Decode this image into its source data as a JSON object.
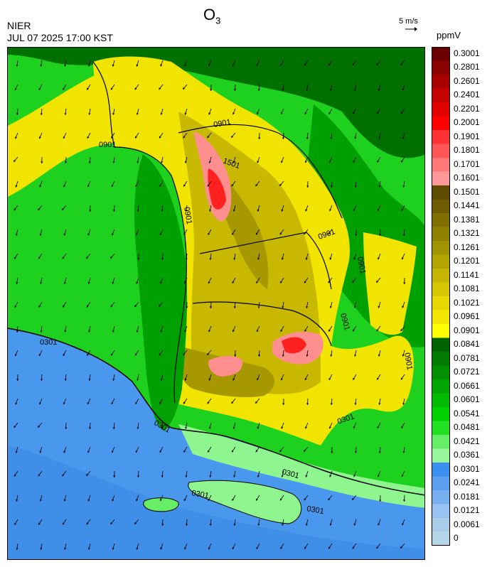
{
  "header": {
    "title_main": "O",
    "title_sub": "3",
    "agency": "NIER",
    "datetime": "JUL 07 2025 17:00 KST",
    "wind_ref_label": "5 m/s",
    "units": "ppmV"
  },
  "contour_labels": [
    "0901",
    "0901",
    "1501",
    "0901",
    "0901",
    "0901",
    "0901",
    "0901",
    "0301",
    "0301",
    "0301",
    "0301",
    "0301",
    "0301"
  ],
  "legend": {
    "levels": [
      {
        "label": "0.3001",
        "color": "#6b0000"
      },
      {
        "label": "0.2801",
        "color": "#8b0000"
      },
      {
        "label": "0.2601",
        "color": "#a80000"
      },
      {
        "label": "0.2401",
        "color": "#c40000"
      },
      {
        "label": "0.2201",
        "color": "#e00000"
      },
      {
        "label": "0.2001",
        "color": "#ff0000"
      },
      {
        "label": "0.1901",
        "color": "#ff3333"
      },
      {
        "label": "0.1801",
        "color": "#ff5555"
      },
      {
        "label": "0.1701",
        "color": "#ff7777"
      },
      {
        "label": "0.1601",
        "color": "#ff9999"
      },
      {
        "label": "0.1501",
        "color": "#5e4a00"
      },
      {
        "label": "0.1441",
        "color": "#6f5c00"
      },
      {
        "label": "0.1381",
        "color": "#806f00"
      },
      {
        "label": "0.1321",
        "color": "#918100"
      },
      {
        "label": "0.1261",
        "color": "#a29300"
      },
      {
        "label": "0.1201",
        "color": "#b3a500"
      },
      {
        "label": "0.1141",
        "color": "#c4b600"
      },
      {
        "label": "0.1081",
        "color": "#d5c700"
      },
      {
        "label": "0.1021",
        "color": "#e6d800"
      },
      {
        "label": "0.0961",
        "color": "#f2e600"
      },
      {
        "label": "0.0901",
        "color": "#ffff00"
      },
      {
        "label": "0.0841",
        "color": "#006400"
      },
      {
        "label": "0.0781",
        "color": "#007a00"
      },
      {
        "label": "0.0721",
        "color": "#009000"
      },
      {
        "label": "0.0661",
        "color": "#00a500"
      },
      {
        "label": "0.0601",
        "color": "#00bb00"
      },
      {
        "label": "0.0541",
        "color": "#00d100"
      },
      {
        "label": "0.0481",
        "color": "#22e022"
      },
      {
        "label": "0.0421",
        "color": "#66ee66"
      },
      {
        "label": "0.0361",
        "color": "#99f599"
      },
      {
        "label": "0.0301",
        "color": "#3a8ff0"
      },
      {
        "label": "0.0241",
        "color": "#5a9ef0"
      },
      {
        "label": "0.0181",
        "color": "#78aff0"
      },
      {
        "label": "0.0121",
        "color": "#98c2f0"
      },
      {
        "label": "0.0061",
        "color": "#a9cde8"
      },
      {
        "label": "0",
        "color": "#b5d6ea"
      }
    ]
  },
  "map_colors": {
    "sea": "#4a98ee",
    "low_green": "#1fd11f",
    "mid_green": "#00a000",
    "dark_green": "#007000",
    "light_green": "#8ff58f",
    "yellow": "#f0e400",
    "olive": "#c8b800",
    "dark_olive": "#a89800",
    "pink": "#ff8f8f",
    "red": "#ff2020"
  }
}
